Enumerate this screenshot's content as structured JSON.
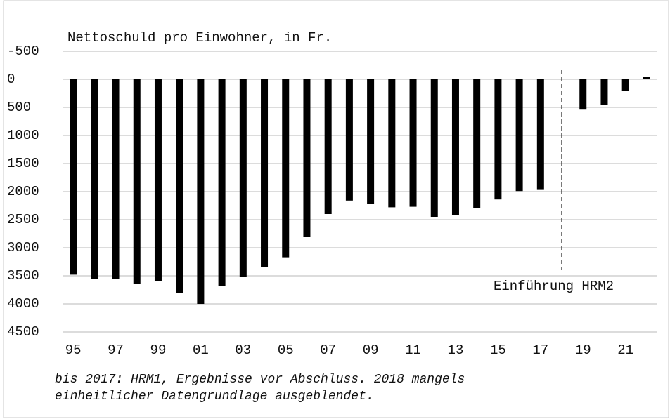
{
  "chart_data": {
    "type": "bar",
    "title": "Nettoschuld pro Einwohner, in Fr.",
    "categories": [
      "95",
      null,
      "97",
      null,
      "99",
      null,
      "01",
      null,
      "03",
      null,
      "05",
      null,
      "07",
      null,
      "09",
      null,
      "11",
      null,
      "13",
      null,
      "15",
      null,
      "17",
      null,
      "19",
      null,
      "21",
      null
    ],
    "values": [
      3480,
      3550,
      3550,
      3650,
      3590,
      3800,
      4000,
      3680,
      3520,
      3350,
      3170,
      2800,
      2400,
      2160,
      2220,
      2280,
      2270,
      2450,
      2420,
      2300,
      2140,
      1990,
      1970,
      null,
      540,
      450,
      200,
      -50
    ],
    "color": "#000000",
    "ylim": [
      -500,
      4500
    ],
    "yticks": [
      -500,
      0,
      500,
      1000,
      1500,
      2000,
      2500,
      3000,
      3500,
      4000,
      4500
    ],
    "y_inverted": true,
    "grid": true,
    "annotation": "Einführung HRM2",
    "footnote": [
      "bis 2017: HRM1, Ergebnisse vor Abschluss. 2018 mangels",
      "einheitlicher Datengrundlage ausgeblendet."
    ]
  }
}
